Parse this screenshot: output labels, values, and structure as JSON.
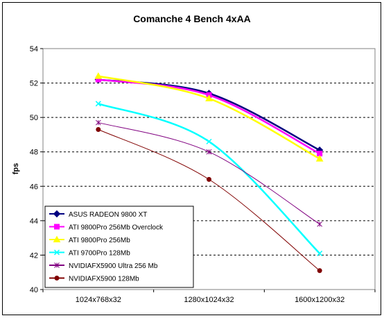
{
  "chart_data": {
    "type": "line",
    "title": "Comanche 4 Bench 4xAA",
    "xlabel": "",
    "ylabel": "fps",
    "categories": [
      "1024x768x32",
      "1280x1024x32",
      "1600x1200x32"
    ],
    "ylim": [
      40,
      54
    ],
    "yticks": [
      40,
      42,
      44,
      46,
      48,
      50,
      52,
      54
    ],
    "grid": true,
    "legend_position": "bottom-left",
    "series": [
      {
        "name": "ASUS RADEON 9800 XT",
        "values": [
          52.2,
          51.4,
          48.1
        ],
        "color": "#000080",
        "marker": "diamond"
      },
      {
        "name": "ATI 9800Pro 256Mb Overclock",
        "values": [
          52.2,
          51.3,
          47.9
        ],
        "color": "#ff00ff",
        "marker": "square"
      },
      {
        "name": "ATI 9800Pro 256Mb",
        "values": [
          52.4,
          51.1,
          47.6
        ],
        "color": "#ffff00",
        "marker": "triangle"
      },
      {
        "name": "ATI 9700Pro 128Mb",
        "values": [
          50.8,
          48.6,
          42.1
        ],
        "color": "#00ffff",
        "marker": "x"
      },
      {
        "name": "NVIDIAFX5900 Ultra 256 Mb",
        "values": [
          49.7,
          48.0,
          43.8
        ],
        "color": "#800080",
        "marker": "star"
      },
      {
        "name": "NVIDIAFX5900 128Mb",
        "values": [
          49.3,
          46.4,
          41.1
        ],
        "color": "#800000",
        "marker": "circle"
      }
    ]
  }
}
